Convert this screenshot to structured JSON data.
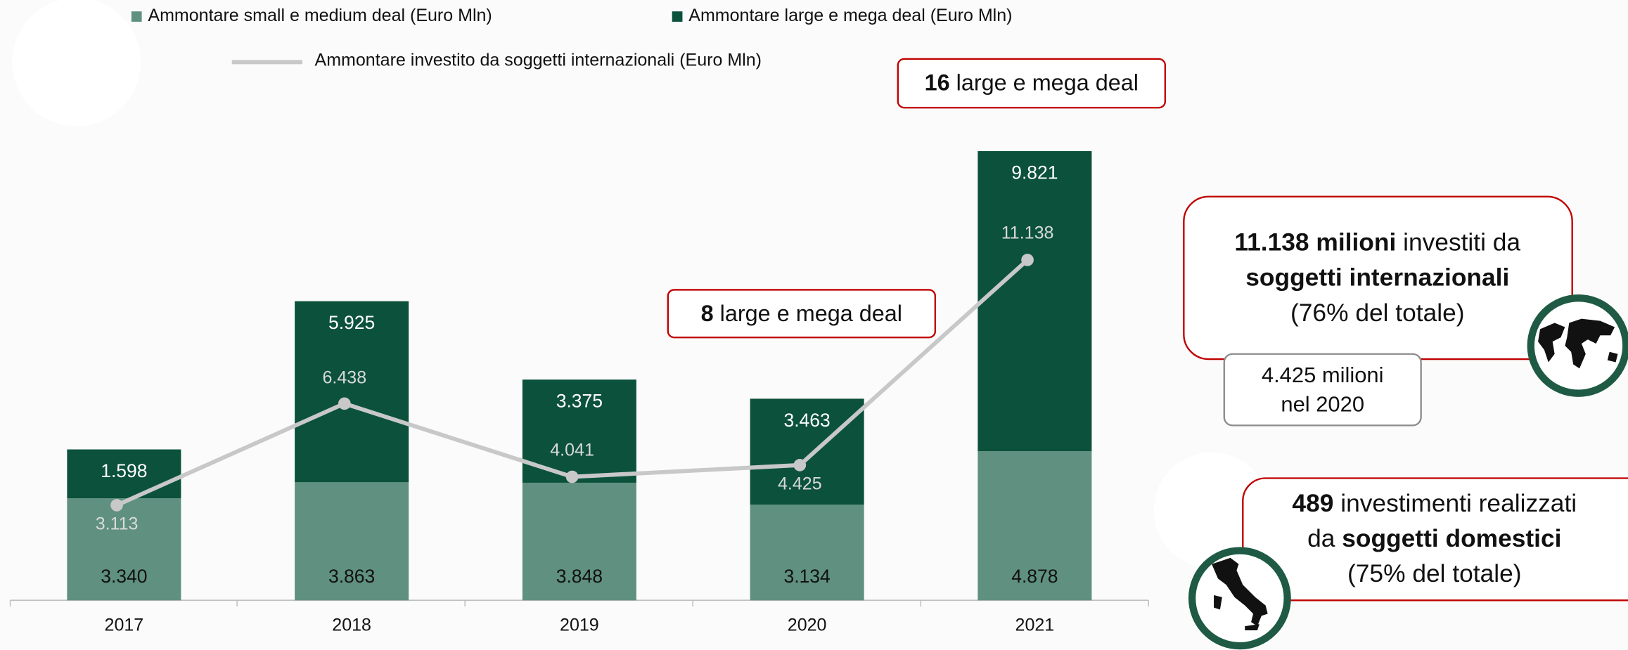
{
  "chart_data": {
    "type": "bar",
    "stacked": true,
    "categories": [
      "2017",
      "2018",
      "2019",
      "2020",
      "2021"
    ],
    "series": [
      {
        "name": "Ammontare small e medium deal (Euro Mln)",
        "color": "#5f9080",
        "values": [
          3340,
          3863,
          3848,
          3134,
          4878
        ],
        "value_labels": [
          "3.340",
          "3.863",
          "3.848",
          "3.134",
          "4.878"
        ]
      },
      {
        "name": "Ammontare large e mega deal (Euro Mln)",
        "color": "#0b513b",
        "values": [
          1598,
          5925,
          3375,
          3463,
          9821
        ],
        "value_labels": [
          "1.598",
          "5.925",
          "3.375",
          "3.463",
          "9.821"
        ]
      },
      {
        "name": "Ammontare investito da soggetti internazionali (Euro Mln)",
        "type": "line",
        "color": "#c8c8c8",
        "values": [
          3113,
          6438,
          4041,
          4425,
          11138
        ],
        "value_labels": [
          "3.113",
          "6.438",
          "4.041",
          "4.425",
          "11.138"
        ]
      }
    ],
    "annotations": [
      {
        "lines": [
          [
            {
              "text": "16",
              "bold": true
            },
            {
              "text": " large e mega deal"
            }
          ]
        ]
      },
      {
        "lines": [
          [
            {
              "text": "8",
              "bold": true
            },
            {
              "text": " large e mega deal"
            }
          ]
        ]
      },
      {
        "lines": [
          [
            {
              "text": "11.138 milioni",
              "bold": true
            },
            {
              "text": " investiti da"
            }
          ],
          [
            {
              "text": "soggetti internazionali",
              "bold": true
            }
          ],
          [
            {
              "text": "(76% del totale)"
            }
          ]
        ]
      },
      {
        "lines": [
          [
            {
              "text": "4.425 milioni"
            }
          ],
          [
            {
              "text": "nel 2020"
            }
          ]
        ]
      },
      {
        "lines": [
          [
            {
              "text": "489",
              "bold": true
            },
            {
              "text": " investimenti realizzati"
            }
          ],
          [
            {
              "text": "da "
            },
            {
              "text": "soggetti domestici",
              "bold": true
            }
          ],
          [
            {
              "text": "(75% del totale)"
            }
          ]
        ]
      }
    ]
  }
}
